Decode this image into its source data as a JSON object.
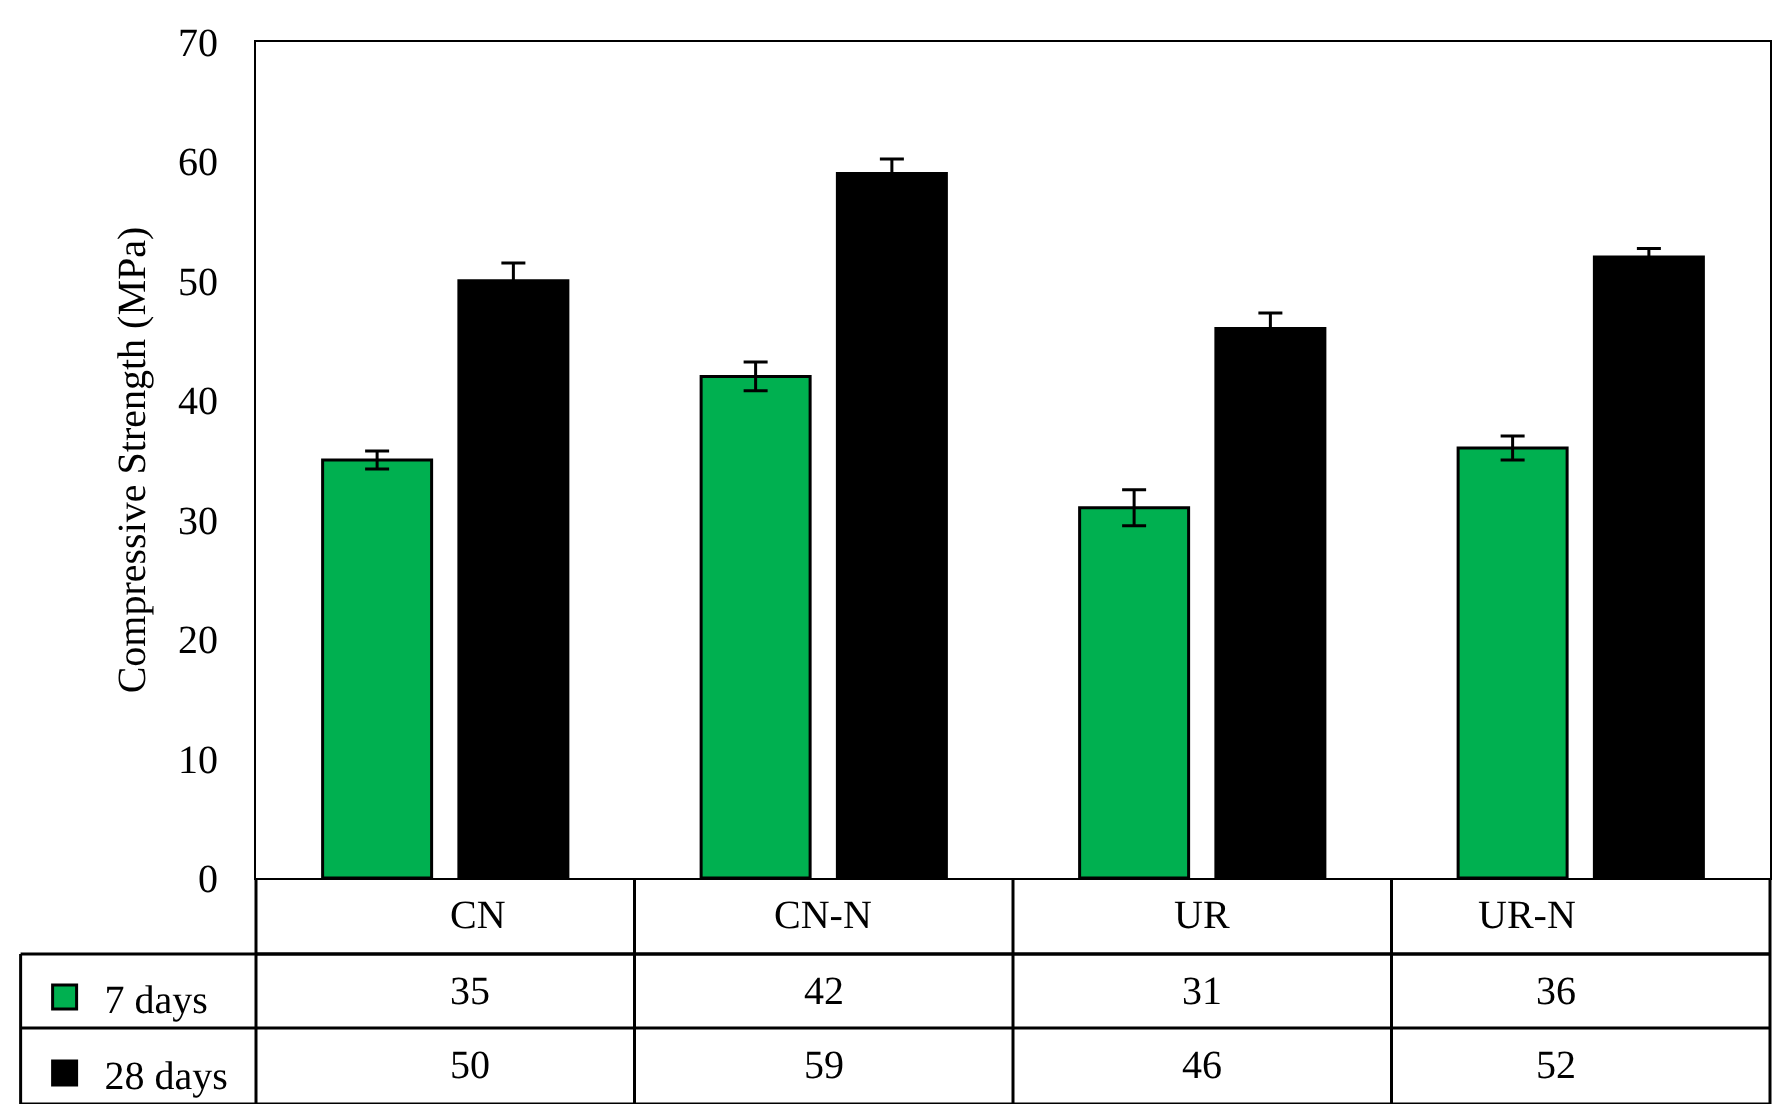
{
  "chart_data": {
    "type": "bar",
    "ylabel": "Compressive Strength (MPa)",
    "categories": [
      "CN",
      "CN-N",
      "UR",
      "UR-N"
    ],
    "series": [
      {
        "name": "7 days",
        "color": "#00b050",
        "values": [
          35,
          42,
          31,
          36
        ],
        "errors": [
          0.75,
          1.2,
          1.5,
          1.0
        ]
      },
      {
        "name": "28 days",
        "color": "#000000",
        "values": [
          50,
          59,
          46,
          52
        ],
        "errors": [
          1.5,
          1.2,
          1.3,
          0.7
        ]
      }
    ],
    "ylim": [
      0,
      70
    ],
    "yticks": [
      0,
      10,
      20,
      30,
      40,
      50,
      60,
      70
    ],
    "grid": false,
    "legend": "bottom",
    "data_labels": true
  }
}
